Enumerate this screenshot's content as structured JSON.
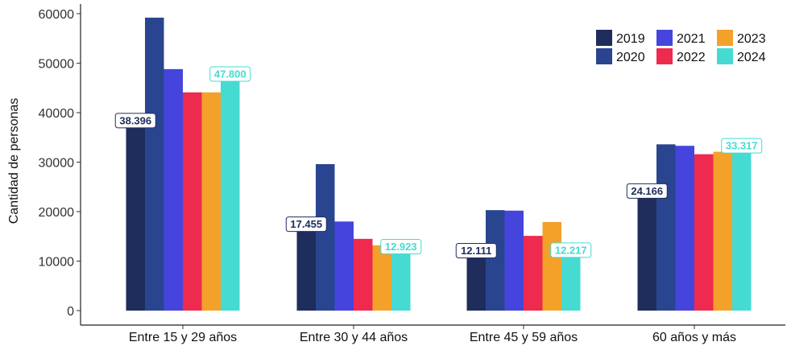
{
  "chart_data": {
    "type": "bar",
    "title": "",
    "xlabel": "",
    "ylabel": "Cantidad de personas",
    "ylim": [
      0,
      63000
    ],
    "yticks": [
      0,
      10000,
      20000,
      30000,
      40000,
      50000,
      60000
    ],
    "yticks_labels": [
      "0",
      "10000",
      "20000",
      "30000",
      "40000",
      "50000",
      "60000"
    ],
    "grid": false,
    "legend_position": "top-right",
    "categories": [
      "Entre 15 y 29 años",
      "Entre 30 y 44 años",
      "Entre 45 y 59 años",
      "60 años y más"
    ],
    "series": [
      {
        "name": "2019",
        "color": "#1f2d5c",
        "values": [
          38396,
          17455,
          12111,
          24166
        ]
      },
      {
        "name": "2020",
        "color": "#2a4590",
        "values": [
          59200,
          29600,
          20300,
          33600
        ]
      },
      {
        "name": "2021",
        "color": "#4545dd",
        "values": [
          48800,
          18000,
          20200,
          33300
        ]
      },
      {
        "name": "2022",
        "color": "#ef2a4f",
        "values": [
          44100,
          14500,
          15100,
          31600
        ]
      },
      {
        "name": "2023",
        "color": "#f4a12a",
        "values": [
          44100,
          13200,
          17900,
          32100
        ]
      },
      {
        "name": "2024",
        "color": "#45dbd3",
        "values": [
          47800,
          12923,
          12217,
          33317
        ]
      }
    ],
    "data_labels": [
      {
        "category_index": 0,
        "series_index": 0,
        "text": "38.396",
        "color": "#1f2d5c"
      },
      {
        "category_index": 0,
        "series_index": 5,
        "text": "47.800",
        "color": "#45dbd3"
      },
      {
        "category_index": 1,
        "series_index": 0,
        "text": "17.455",
        "color": "#1f2d5c"
      },
      {
        "category_index": 1,
        "series_index": 5,
        "text": "12.923",
        "color": "#45dbd3"
      },
      {
        "category_index": 2,
        "series_index": 0,
        "text": "12.111",
        "color": "#1f2d5c"
      },
      {
        "category_index": 2,
        "series_index": 5,
        "text": "12.217",
        "color": "#45dbd3"
      },
      {
        "category_index": 3,
        "series_index": 0,
        "text": "24.166",
        "color": "#1f2d5c"
      },
      {
        "category_index": 3,
        "series_index": 5,
        "text": "33.317",
        "color": "#45dbd3"
      }
    ]
  }
}
